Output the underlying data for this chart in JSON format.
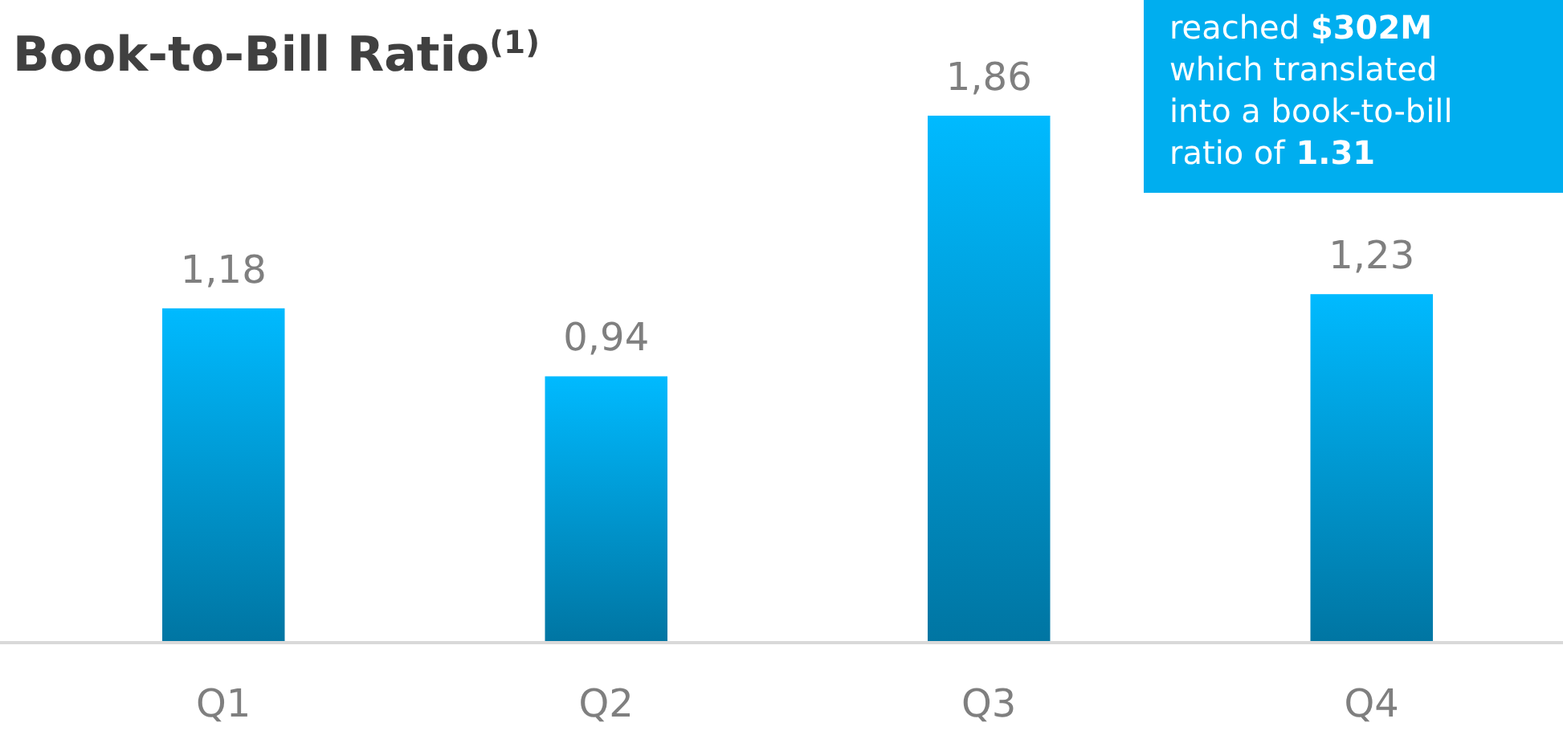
{
  "chart_data": {
    "type": "bar",
    "title": "Book-to-Bill Ratio$^{(1)}$",
    "categories": [
      "Q1",
      "Q2",
      "Q3",
      "Q4"
    ],
    "values": [
      1.18,
      0.94,
      1.86,
      1.23
    ],
    "value_labels": [
      "1,18",
      "0,94",
      "1,86",
      "1,23"
    ],
    "color": "#0096d0",
    "annotations": [
      "reached $302M which translated into a book-to-bill ratio of 1.31"
    ],
    "legend": false
  }
}
